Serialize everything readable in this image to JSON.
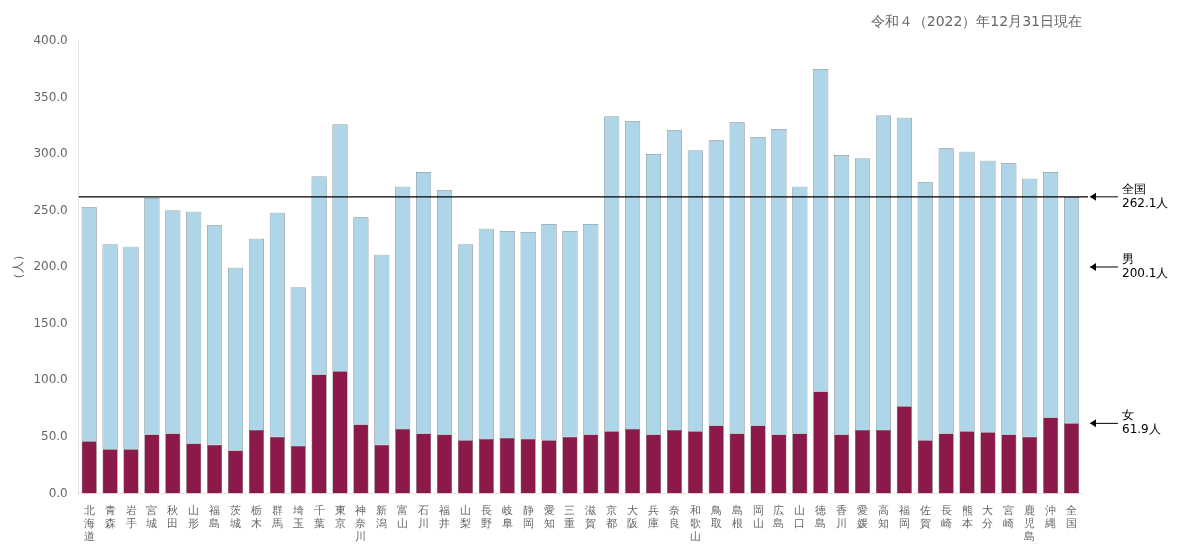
{
  "chart_data": {
    "type": "bar",
    "title": "令和４（2022）年12月31日現在",
    "ylabel": "（人）",
    "categories": [
      "北\n海\n道",
      "青\n森",
      "岩\n手",
      "宮\n城",
      "秋\n田",
      "山\n形",
      "福\n島",
      "茨\n城",
      "栃\n木",
      "群\n馬",
      "埼\n玉",
      "千\n葉",
      "東\n京",
      "神\n奈\n川",
      "新\n潟",
      "富\n山",
      "石\n川",
      "福\n井",
      "山\n梨",
      "長\n野",
      "岐\n阜",
      "静\n岡",
      "愛\n知",
      "三\n重",
      "滋\n賀",
      "京\n都",
      "大\n阪",
      "兵\n庫",
      "奈\n良",
      "和\n歌\n山",
      "鳥\n取",
      "島\n根",
      "岡\n山",
      "広\n島",
      "山\n口",
      "徳\n島",
      "香\n川",
      "愛\n媛",
      "高\n知",
      "福\n岡",
      "佐\n賀",
      "長\n崎",
      "熊\n本",
      "大\n分",
      "宮\n崎",
      "鹿\n児\n島",
      "沖\n縄",
      "全\n国"
    ],
    "series": [
      {
        "color": "#8b1a4a",
        "values": [
          46.0,
          39.0,
          39.0,
          52.0,
          53.0,
          44.0,
          43.0,
          38.0,
          56.0,
          50.0,
          42.0,
          105.0,
          108.0,
          61.0,
          43.0,
          57.0,
          53.0,
          52.0,
          47.0,
          48.0,
          49.0,
          48.0,
          47.0,
          50.0,
          52.0,
          55.0,
          57.0,
          52.0,
          56.0,
          55.0,
          60.0,
          53.0,
          60.0,
          52.0,
          53.0,
          90.0,
          52.0,
          56.0,
          56.0,
          77.0,
          47.0,
          53.0,
          55.0,
          54.0,
          52.0,
          50.0,
          67.0,
          61.9
        ]
      },
      {
        "color": "#aed6e8",
        "values": [
          207.0,
          181.0,
          179.0,
          209.0,
          197.0,
          205.0,
          194.0,
          161.5,
          169.0,
          198.0,
          140.0,
          175.0,
          218.0,
          183.0,
          168.0,
          214.0,
          231.0,
          216.0,
          173.0,
          186.0,
          183.0,
          183.0,
          191.0,
          182.0,
          186.0,
          278.0,
          272.0,
          248.0,
          265.0,
          248.0,
          252.0,
          275.0,
          255.0,
          270.0,
          218.0,
          285.0,
          247.0,
          240.0,
          278.0,
          255.0,
          228.0,
          252.0,
          247.0,
          240.0,
          240.0,
          228.0,
          217.0,
          200.1
        ]
      }
    ],
    "stacked": true,
    "ylim": [
      0,
      400
    ],
    "yticks": [
      {
        "value": 0,
        "label": "0.0"
      },
      {
        "value": 50,
        "label": "50.0"
      },
      {
        "value": 100,
        "label": "100.0"
      },
      {
        "value": 150,
        "label": "150.0"
      },
      {
        "value": 200,
        "label": "200.0"
      },
      {
        "value": 250,
        "label": "250.0"
      },
      {
        "value": 300,
        "label": "300.0"
      },
      {
        "value": 350,
        "label": "350.0"
      },
      {
        "value": 400,
        "label": "400.0"
      }
    ],
    "grid": false,
    "reference_line": 262.1,
    "annotations": [
      {
        "text": "全国\n262.1人",
        "y": 262.1
      },
      {
        "text": "男\n200.1人",
        "y": 200.1
      },
      {
        "text": "女\n61.9人",
        "y": 61.9
      }
    ]
  }
}
